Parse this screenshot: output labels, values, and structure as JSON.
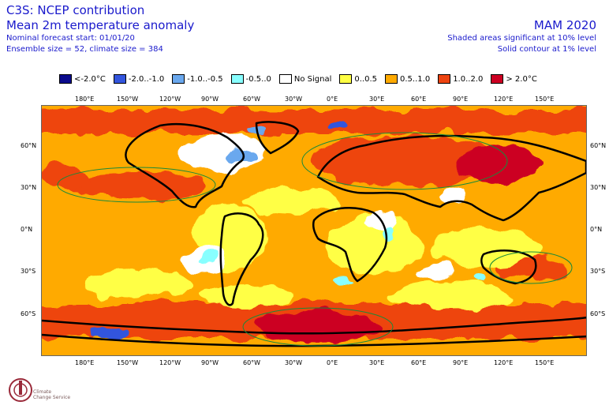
{
  "header": {
    "title": "C3S: NCEP contribution",
    "subtitle": "Mean 2m temperature anomaly",
    "forecast_start": "Nominal forecast start: 01/01/20",
    "ensemble": "Ensemble size = 52, climate size = 384",
    "season": "MAM 2020",
    "sig_note": "Shaded areas significant at 10% level",
    "contour_note": "Solid contour at 1% level"
  },
  "legend": [
    {
      "label": "<-2.0°C",
      "color": "#0a0a8c"
    },
    {
      "label": "-2.0..-1.0",
      "color": "#3355dd"
    },
    {
      "label": "-1.0..-0.5",
      "color": "#6aa8ee"
    },
    {
      "label": "-0.5..0",
      "color": "#88ffff"
    },
    {
      "label": "No Signal",
      "color": "#ffffff"
    },
    {
      "label": "0..0.5",
      "color": "#ffff44"
    },
    {
      "label": "0.5..1.0",
      "color": "#ffaa00"
    },
    {
      "label": "1.0..2.0",
      "color": "#ee4411"
    },
    {
      "label": "> 2.0°C",
      "color": "#cc0022"
    }
  ],
  "lon_ticks": [
    "180°E",
    "150°W",
    "120°W",
    "90°W",
    "60°W",
    "30°W",
    "0°E",
    "30°E",
    "60°E",
    "90°E",
    "120°E",
    "150°E"
  ],
  "lat_ticks": [
    "60°N",
    "30°N",
    "0°N",
    "30°S",
    "60°S"
  ],
  "logo": {
    "line1": "Climate",
    "line2": "Change Service"
  }
}
